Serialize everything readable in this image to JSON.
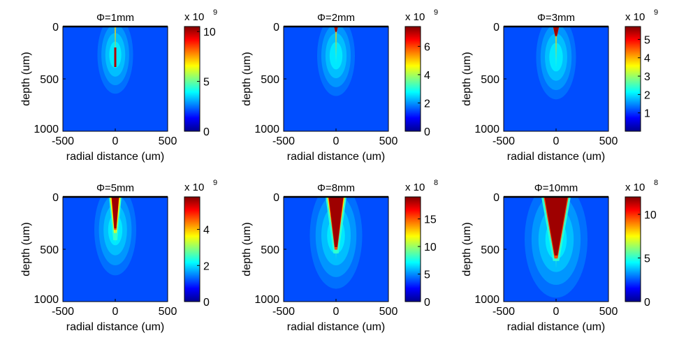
{
  "colors": {
    "jet": [
      "#00008f",
      "#0000ff",
      "#0080ff",
      "#00ffff",
      "#80ff80",
      "#ffff00",
      "#ff8000",
      "#ff0000",
      "#800000"
    ],
    "background_level": 0.2,
    "axis": "#000000"
  },
  "chart_data": [
    {
      "type": "heatmap",
      "title": "Φ=1mm",
      "xlabel": "radial distance (um)",
      "ylabel": "depth (um)",
      "xlim": [
        -500,
        500
      ],
      "ylim": [
        0,
        1000
      ],
      "y_reversed": true,
      "x_ticks": [
        "-500",
        "0",
        "500"
      ],
      "y_ticks": [
        "0",
        "500",
        "1000"
      ],
      "colorbar": {
        "exponent_base": "x 10",
        "exponent_power": "9",
        "range": [
          0,
          10.5
        ],
        "ticks": [
          "0",
          "5",
          "10"
        ],
        "tick_values": [
          0,
          5,
          10
        ]
      },
      "profile": {
        "hot_top_halfwidth_um": 0,
        "hot_bottom_halfwidth_um": 0,
        "hot_depth_um": 0,
        "core_depth_um": 340,
        "core_halfwidth_um": 8,
        "glow_depth_um": 600,
        "glow_halfwidth_um": 170
      }
    },
    {
      "type": "heatmap",
      "title": "Φ=2mm",
      "xlabel": "radial distance (um)",
      "ylabel": "depth (um)",
      "xlim": [
        -500,
        500
      ],
      "ylim": [
        0,
        1000
      ],
      "y_reversed": true,
      "x_ticks": [
        "-500",
        "0",
        "500"
      ],
      "y_ticks": [
        "0",
        "500",
        "1000"
      ],
      "colorbar": {
        "exponent_base": "x 10",
        "exponent_power": "9",
        "range": [
          0,
          7.4
        ],
        "ticks": [
          "0",
          "2",
          "4",
          "6"
        ],
        "tick_values": [
          0,
          2,
          4,
          6
        ]
      },
      "profile": {
        "hot_top_halfwidth_um": 18,
        "hot_bottom_halfwidth_um": 6,
        "hot_depth_um": 50,
        "core_depth_um": 360,
        "core_halfwidth_um": 9,
        "glow_depth_um": 620,
        "glow_halfwidth_um": 180
      }
    },
    {
      "type": "heatmap",
      "title": "Φ=3mm",
      "xlabel": "radial distance (um)",
      "ylabel": "depth (um)",
      "xlim": [
        -500,
        500
      ],
      "ylim": [
        0,
        1000
      ],
      "y_reversed": true,
      "x_ticks": [
        "-500",
        "0",
        "500"
      ],
      "y_ticks": [
        "0",
        "500",
        "1000"
      ],
      "colorbar": {
        "exponent_base": "x 10",
        "exponent_power": "9",
        "range": [
          0,
          5.7
        ],
        "ticks": [
          "1",
          "2",
          "3",
          "4",
          "5"
        ],
        "tick_values": [
          1,
          2,
          3,
          4,
          5
        ]
      },
      "profile": {
        "hot_top_halfwidth_um": 28,
        "hot_bottom_halfwidth_um": 8,
        "hot_depth_um": 90,
        "core_depth_um": 400,
        "core_halfwidth_um": 10,
        "glow_depth_um": 650,
        "glow_halfwidth_um": 190
      }
    },
    {
      "type": "heatmap",
      "title": "Φ=5mm",
      "xlabel": "radial distance (um)",
      "ylabel": "depth (um)",
      "xlim": [
        -500,
        500
      ],
      "ylim": [
        0,
        1000
      ],
      "y_reversed": true,
      "x_ticks": [
        "-500",
        "0",
        "500"
      ],
      "y_ticks": [
        "0",
        "500",
        "1000"
      ],
      "colorbar": {
        "exponent_base": "x 10",
        "exponent_power": "9",
        "range": [
          0,
          5.8
        ],
        "ticks": [
          "0",
          "2",
          "4"
        ],
        "tick_values": [
          0,
          2,
          4
        ]
      },
      "profile": {
        "hot_top_halfwidth_um": 35,
        "hot_bottom_halfwidth_um": 10,
        "hot_depth_um": 300,
        "core_depth_um": 460,
        "core_halfwidth_um": 12,
        "glow_depth_um": 700,
        "glow_halfwidth_um": 200,
        "plume_halfwidth_um": 60,
        "plume_depth_um": 120
      }
    },
    {
      "type": "heatmap",
      "title": "Φ=8mm",
      "xlabel": "radial distance (um)",
      "ylabel": "depth (um)",
      "xlim": [
        -500,
        500
      ],
      "ylim": [
        0,
        1000
      ],
      "y_reversed": true,
      "x_ticks": [
        "-500",
        "0",
        "500"
      ],
      "y_ticks": [
        "0",
        "500",
        "1000"
      ],
      "colorbar": {
        "exponent_base": "x 10",
        "exponent_power": "8",
        "range": [
          0,
          19
        ],
        "ticks": [
          "0",
          "5",
          "10",
          "15"
        ],
        "tick_values": [
          0,
          5,
          10,
          15
        ]
      },
      "profile": {
        "hot_top_halfwidth_um": 70,
        "hot_bottom_halfwidth_um": 12,
        "hot_depth_um": 480,
        "core_depth_um": 600,
        "core_halfwidth_um": 15,
        "glow_depth_um": 820,
        "glow_halfwidth_um": 250,
        "plume_halfwidth_um": 100,
        "plume_depth_um": 120
      }
    },
    {
      "type": "heatmap",
      "title": "Φ=10mm",
      "xlabel": "radial distance (um)",
      "ylabel": "depth (um)",
      "xlim": [
        -500,
        500
      ],
      "ylim": [
        0,
        1000
      ],
      "y_reversed": true,
      "x_ticks": [
        "-500",
        "0",
        "500"
      ],
      "y_ticks": [
        "0",
        "500",
        "1000"
      ],
      "colorbar": {
        "exponent_base": "x 10",
        "exponent_power": "8",
        "range": [
          0,
          12
        ],
        "ticks": [
          "0",
          "5",
          "10"
        ],
        "tick_values": [
          0,
          5,
          10
        ]
      },
      "profile": {
        "hot_top_halfwidth_um": 110,
        "hot_bottom_halfwidth_um": 14,
        "hot_depth_um": 560,
        "core_depth_um": 680,
        "core_halfwidth_um": 18,
        "glow_depth_um": 900,
        "glow_halfwidth_um": 300,
        "plume_halfwidth_um": 140,
        "plume_depth_um": 110
      }
    }
  ]
}
